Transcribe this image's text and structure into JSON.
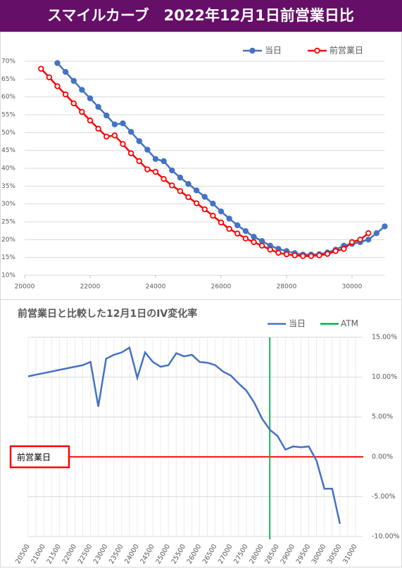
{
  "header": {
    "title": "スマイルカーブ　2022年12月1日前営業日比"
  },
  "chart_data": [
    {
      "type": "line",
      "legend": "top-right",
      "grid": true,
      "x": [
        20500,
        20750,
        21000,
        21250,
        21500,
        21750,
        22000,
        22250,
        22500,
        22750,
        23000,
        23250,
        23500,
        23750,
        24000,
        24250,
        24500,
        24750,
        25000,
        25250,
        25500,
        25750,
        26000,
        26250,
        26500,
        26750,
        27000,
        27250,
        27500,
        27750,
        28000,
        28250,
        28500,
        28750,
        29000,
        29250,
        29500,
        29750,
        30000,
        30250,
        30500,
        30750,
        31000
      ],
      "xlim": [
        20000,
        31000
      ],
      "xticks": [
        20000,
        22000,
        24000,
        26000,
        28000,
        30000
      ],
      "ylim": [
        10,
        70
      ],
      "yticks": [
        {
          "value": 10,
          "label": "10%"
        },
        {
          "value": 15,
          "label": "15%"
        },
        {
          "value": 20,
          "label": "20%"
        },
        {
          "value": 25,
          "label": "25%"
        },
        {
          "value": 30,
          "label": "30%"
        },
        {
          "value": 35,
          "label": "35%"
        },
        {
          "value": 40,
          "label": "40%"
        },
        {
          "value": 45,
          "label": "45%"
        },
        {
          "value": 50,
          "label": "50%"
        },
        {
          "value": 55,
          "label": "55%"
        },
        {
          "value": 60,
          "label": "60%"
        },
        {
          "value": 65,
          "label": "65%"
        },
        {
          "value": 70,
          "label": "70%"
        }
      ],
      "series": [
        {
          "name": "当日",
          "color": "#4472c4",
          "values": [
            null,
            null,
            69.5,
            67.0,
            64.5,
            62.0,
            59.6,
            57.2,
            54.8,
            52.3,
            52.6,
            50.2,
            47.6,
            45.2,
            42.6,
            42.0,
            39.4,
            37.4,
            35.6,
            33.8,
            32.0,
            30.1,
            27.9,
            25.9,
            24.0,
            22.4,
            20.8,
            19.6,
            18.3,
            17.4,
            16.8,
            16.2,
            15.8,
            15.8,
            15.9,
            16.4,
            17.2,
            18.3,
            18.8,
            19.3,
            20.0,
            21.8,
            23.7
          ]
        },
        {
          "name": "前営業日",
          "color": "#ff0000",
          "values": [
            67.9,
            65.5,
            63.0,
            60.7,
            58.2,
            55.8,
            53.4,
            51.1,
            48.9,
            49.2,
            46.8,
            44.2,
            42.0,
            39.7,
            39.0,
            37.0,
            35.2,
            33.6,
            31.9,
            30.2,
            28.5,
            26.7,
            24.8,
            23.0,
            21.7,
            20.3,
            19.3,
            18.3,
            17.2,
            16.3,
            15.9,
            15.6,
            15.4,
            15.4,
            15.6,
            16.0,
            16.8,
            17.4,
            19.3,
            20.0,
            21.8,
            null,
            null
          ]
        }
      ]
    },
    {
      "type": "line",
      "title": "前営業日と比較した12月1日のIV変化率",
      "legend": "top-right",
      "grid": true,
      "x": [
        20500,
        20750,
        21000,
        21250,
        21500,
        21750,
        22000,
        22250,
        22500,
        22750,
        23000,
        23250,
        23500,
        23750,
        24000,
        24250,
        24500,
        24750,
        25000,
        25250,
        25500,
        25750,
        26000,
        26250,
        26500,
        26750,
        27000,
        27250,
        27500,
        27750,
        28000,
        28250,
        28500,
        28750,
        29000,
        29250,
        29500,
        29750,
        30000,
        30250,
        30500,
        30750,
        31000
      ],
      "xlim": [
        20500,
        31000
      ],
      "xticks": [
        20500,
        21000,
        21500,
        22000,
        22500,
        23000,
        23500,
        24000,
        24500,
        25000,
        25500,
        26000,
        26500,
        27000,
        27500,
        28000,
        28500,
        29000,
        29500,
        30000,
        30500,
        31000
      ],
      "y2lim": [
        -10,
        15
      ],
      "y2ticks": [
        {
          "value": -10,
          "label": "-10.00%"
        },
        {
          "value": -5,
          "label": "-5.00%"
        },
        {
          "value": 0,
          "label": "0.00%"
        },
        {
          "value": 5,
          "label": "5.00%"
        },
        {
          "value": 10,
          "label": "10.00%"
        },
        {
          "value": 15,
          "label": "15.00%"
        }
      ],
      "series": [
        {
          "name": "当日",
          "color": "#4472c4",
          "axis": "y2",
          "values": [
            10.1,
            10.3,
            10.5,
            10.7,
            10.9,
            11.1,
            11.3,
            11.5,
            11.9,
            6.3,
            12.3,
            12.8,
            13.1,
            13.7,
            9.9,
            13.1,
            11.9,
            11.3,
            11.5,
            13.0,
            12.6,
            12.8,
            11.9,
            11.8,
            11.5,
            10.7,
            10.2,
            9.2,
            8.3,
            6.8,
            4.8,
            3.4,
            2.6,
            0.9,
            1.3,
            1.2,
            1.3,
            -0.5,
            -4.0,
            -4.0,
            -8.4,
            null,
            null
          ]
        }
      ],
      "atm": {
        "name": "ATM",
        "color": "#00b050",
        "x": 28250
      },
      "reference": {
        "label": "前営業日",
        "value": 0,
        "color": "#ff0000"
      }
    }
  ]
}
